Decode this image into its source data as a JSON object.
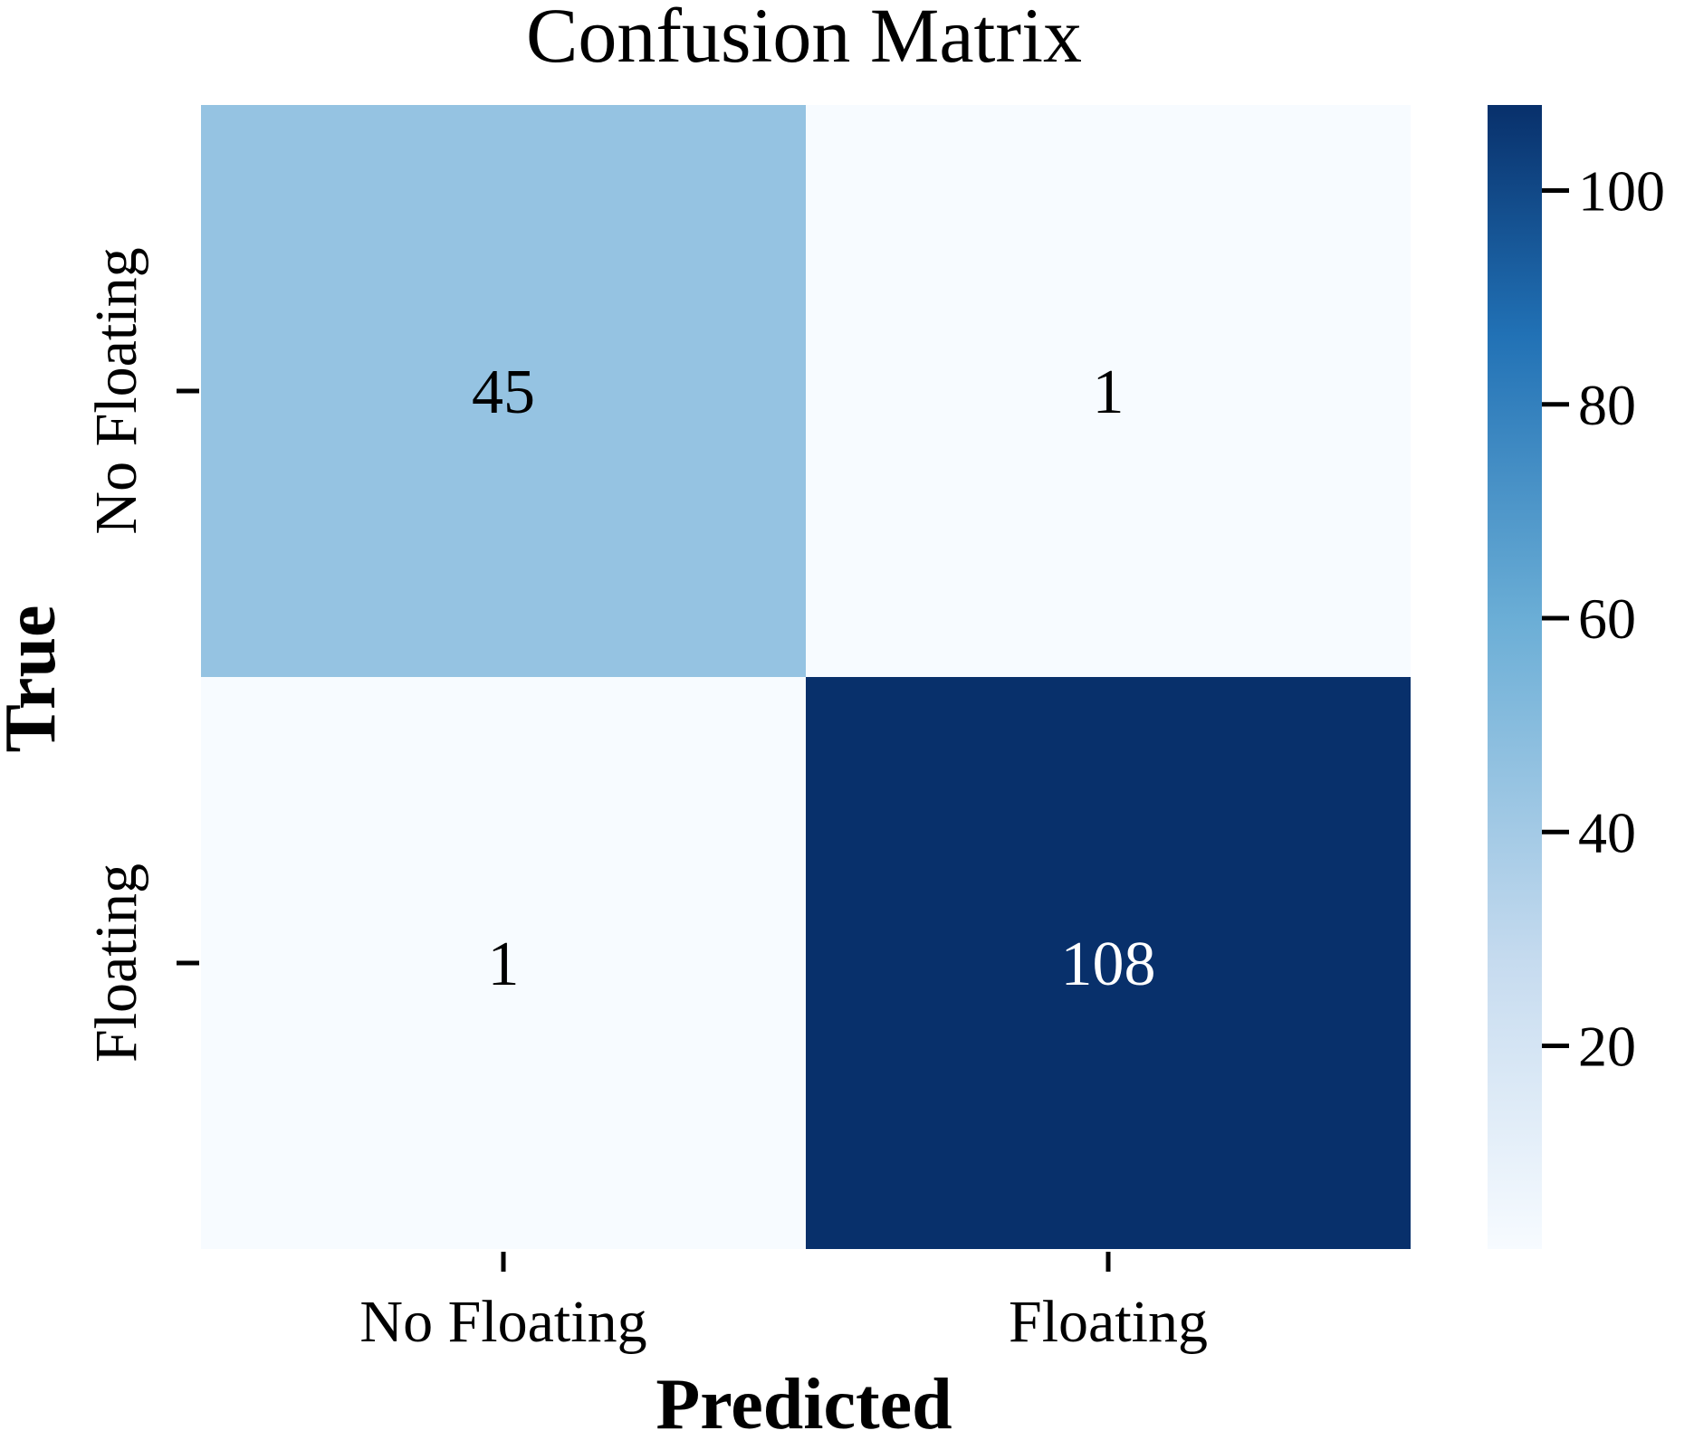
{
  "chart_data": {
    "type": "heatmap",
    "title": "Confusion Matrix",
    "xlabel": "Predicted",
    "ylabel": "True",
    "x_categories": [
      "No Floating",
      "Floating"
    ],
    "y_categories": [
      "No Floating",
      "Floating"
    ],
    "values": [
      [
        45,
        1
      ],
      [
        1,
        108
      ]
    ],
    "colormap": "Blues",
    "colorbar": {
      "vmin": 1,
      "vmax": 108,
      "ticks": [
        20,
        40,
        60,
        80,
        100
      ],
      "colors": {
        "low": "#f7fbff",
        "mid_low": "#c6dbef",
        "mid": "#6baed6",
        "mid_high": "#2171b5",
        "high": "#08306b"
      }
    },
    "annotation_colors": {
      "dark_text": "#000000",
      "light_text": "#ffffff"
    },
    "legend_position": "right"
  }
}
